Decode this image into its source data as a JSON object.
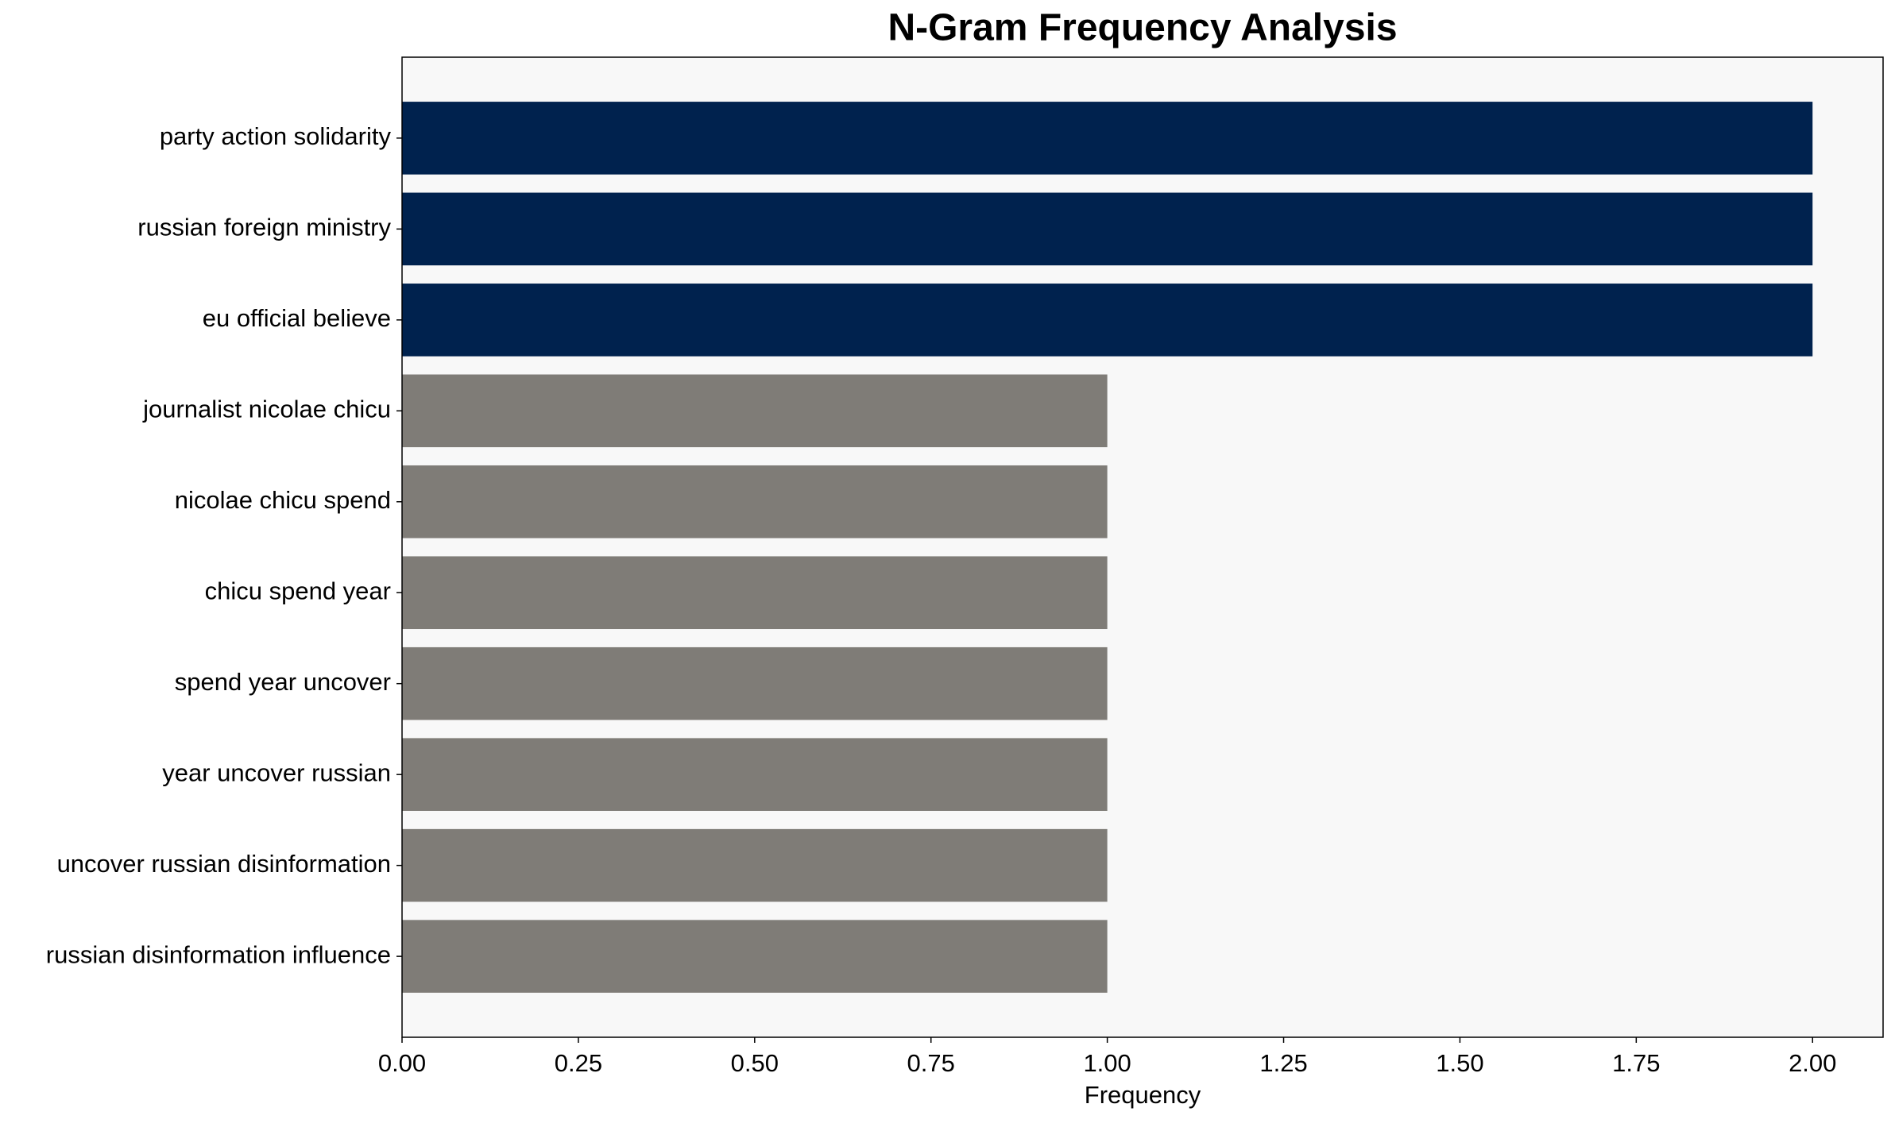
{
  "chart_data": {
    "type": "barh",
    "title": "N-Gram Frequency Analysis",
    "x_label": "Frequency",
    "categories": [
      "party action solidarity",
      "russian foreign ministry",
      "eu official believe",
      "journalist nicolae chicu",
      "nicolae chicu spend",
      "chicu spend year",
      "spend year uncover",
      "year uncover russian",
      "uncover russian disinformation",
      "russian disinformation influence"
    ],
    "values": [
      2,
      2,
      2,
      1,
      1,
      1,
      1,
      1,
      1,
      1
    ],
    "colors": [
      "#00224e",
      "#00224e",
      "#00224e",
      "#7f7c77",
      "#7f7c77",
      "#7f7c77",
      "#7f7c77",
      "#7f7c77",
      "#7f7c77",
      "#7f7c77"
    ],
    "xlim": [
      0,
      2.1
    ],
    "xticks": [
      {
        "value": 0,
        "label": "0.00"
      },
      {
        "value": 0.25,
        "label": "0.25"
      },
      {
        "value": 0.5,
        "label": "0.50"
      },
      {
        "value": 0.75,
        "label": "0.75"
      },
      {
        "value": 1,
        "label": "1.00"
      },
      {
        "value": 1.25,
        "label": "1.25"
      },
      {
        "value": 1.5,
        "label": "1.50"
      },
      {
        "value": 1.75,
        "label": "1.75"
      },
      {
        "value": 2,
        "label": "2.00"
      }
    ],
    "grid": false,
    "background": "#f8f8f8"
  }
}
